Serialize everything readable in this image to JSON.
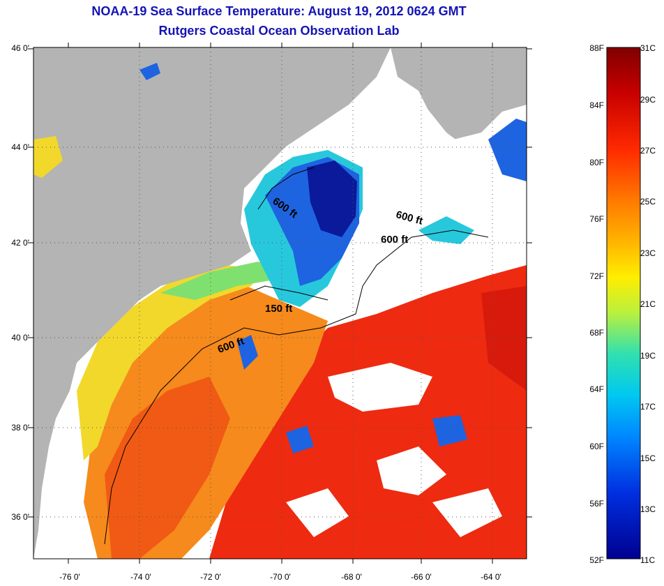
{
  "header": {
    "title": "NOAA-19 Sea Surface Temperature:  August 19, 2012 0624 GMT",
    "subtitle": "Rutgers Coastal Ocean Observation Lab"
  },
  "map": {
    "lat_labels": [
      "46 0'",
      "44 0'",
      "42 0'",
      "40 0'",
      "38 0'",
      "36 0'"
    ],
    "lon_labels": [
      "-76 0'",
      "-74 0'",
      "-72 0'",
      "-70 0'",
      "-68 0'",
      "-66 0'",
      "-64 0'"
    ],
    "contour_labels": [
      "600 ft",
      "600 ft",
      "600 ft",
      "150 ft",
      "600 ft"
    ],
    "colors": {
      "land": "#b4b4b4",
      "cloud": "#ffffff",
      "warm": "#ee2a10",
      "orange": "#f68a1c",
      "yellow": "#f2d82a",
      "cyan": "#28c8dc",
      "blue": "#1e64e0",
      "deep_blue": "#0a1a9a"
    }
  },
  "colorbar": {
    "fahrenheit_labels": [
      "88F",
      "84F",
      "80F",
      "76F",
      "72F",
      "68F",
      "64F",
      "60F",
      "56F",
      "52F"
    ],
    "celsius_labels": [
      "31C",
      "29C",
      "27C",
      "25C",
      "23C",
      "21C",
      "19C",
      "17C",
      "15C",
      "13C",
      "11C"
    ],
    "gradient": [
      "#800000",
      "#c80000",
      "#ff2a00",
      "#ff7a00",
      "#ffb400",
      "#ffee00",
      "#b8f040",
      "#30e0b0",
      "#00c8f0",
      "#0088ff",
      "#0030e0",
      "#000090"
    ]
  }
}
